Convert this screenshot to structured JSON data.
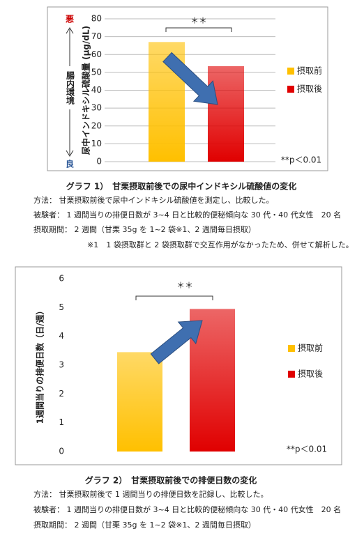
{
  "chart_data": [
    {
      "type": "bar",
      "title": "グラフ 1）　甘栗摂取前後での尿中インドキシル硫酸値の変化",
      "notes": [
        "方法：  甘栗摂取前後で尿中インドキシル硫酸値を測定し、比較した。",
        "被験者：  1 週間当りの排便日数が 3~4 日と比較的便秘傾向な 30 代・40 代女性　20 名",
        "摂取期間：  2 週間（甘栗 35g を 1~2 袋※1、2 週間毎日摂取）",
        "※1　1 袋摂取群と 2 袋摂取群で交互作用がなかったため、併せて解析した。"
      ],
      "y_label": "尿中インドキシル硫酸量 (µg/dL)",
      "scale_labels": {
        "top": "悪",
        "middle": "腸内環境",
        "bottom": "良"
      },
      "significance": "＊＊",
      "p_note": "**p＜0.01",
      "series": [
        {
          "name": "摂取前",
          "color": "#ffc000",
          "values": [
            67
          ]
        },
        {
          "name": "摂取後",
          "color": "#e00000",
          "values": [
            53.5
          ]
        }
      ],
      "ylim": [
        0,
        80
      ],
      "yticks": [
        0,
        10,
        20,
        30,
        40,
        50,
        60,
        70,
        80
      ],
      "grid": true,
      "legend": "right"
    },
    {
      "type": "bar",
      "title": "グラフ 2）　甘栗摂取前後での排便日数の変化",
      "notes": [
        "方法：  甘栗摂取前後で 1 週間当りの排便日数を記録し、比較した。",
        "被験者：  1 週間当りの排便日数が 3~4 日と比較的便秘傾向な 30 代・40 代女性　20 名",
        "摂取期間：  2 週間（甘栗 35g を 1~2 袋※1、2 週間毎日摂取）"
      ],
      "y_label": "1週間当りの排便日数（日/週）",
      "significance": "＊＊",
      "p_note": "**p＜0.01",
      "series": [
        {
          "name": "摂取前",
          "color": "#ffc000",
          "values": [
            3.45
          ]
        },
        {
          "name": "摂取後",
          "color": "#e00000",
          "values": [
            4.95
          ]
        }
      ],
      "ylim": [
        0,
        6
      ],
      "yticks": [
        0,
        1,
        2,
        3,
        4,
        5,
        6
      ],
      "grid": false,
      "legend": "right"
    }
  ]
}
